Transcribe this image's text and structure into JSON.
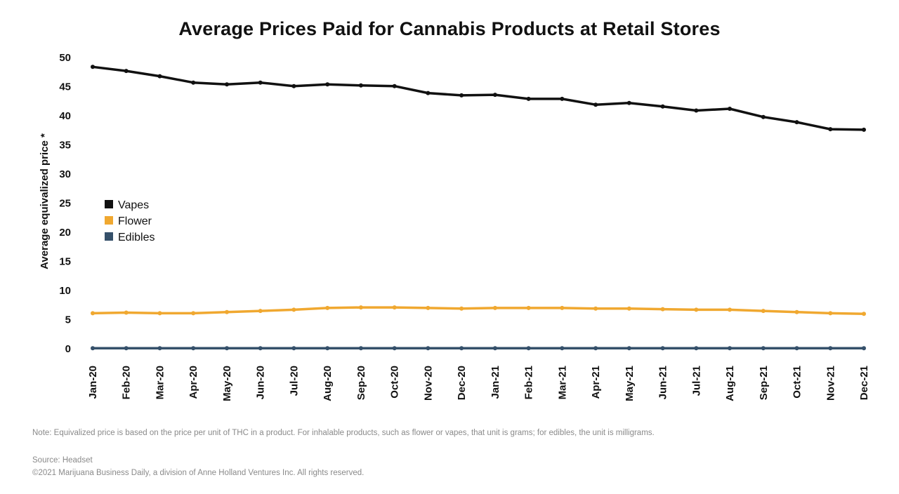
{
  "chart_data": {
    "type": "line",
    "title": "Average Prices Paid for Cannabis Products at Retail Stores",
    "xlabel": "",
    "ylabel": "Average equivalized price *",
    "ylim": [
      0,
      50
    ],
    "yticks": [
      "0",
      "5",
      "10",
      "15",
      "20",
      "25",
      "30",
      "35",
      "40",
      "45",
      "50"
    ],
    "grid": false,
    "legend_position": "left",
    "categories": [
      "Jan-20",
      "Feb-20",
      "Mar-20",
      "Apr-20",
      "May-20",
      "Jun-20",
      "Jul-20",
      "Aug-20",
      "Sep-20",
      "Oct-20",
      "Nov-20",
      "Dec-20",
      "Jan-21",
      "Feb-21",
      "Mar-21",
      "Apr-21",
      "May-21",
      "Jun-21",
      "Jul-21",
      "Aug-21",
      "Sep-21",
      "Oct-21",
      "Nov-21",
      "Dec-21"
    ],
    "series": [
      {
        "name": "Vapes",
        "color": "#111111",
        "values": [
          48.4,
          47.7,
          46.8,
          45.7,
          45.4,
          45.7,
          45.1,
          45.4,
          45.2,
          45.1,
          43.9,
          43.5,
          43.6,
          42.9,
          42.9,
          41.9,
          42.2,
          41.6,
          40.9,
          41.2,
          39.8,
          38.9,
          37.7,
          37.6
        ]
      },
      {
        "name": "Flower",
        "color": "#f0a830",
        "values": [
          6.1,
          6.2,
          6.1,
          6.1,
          6.3,
          6.5,
          6.7,
          7.0,
          7.1,
          7.1,
          7.0,
          6.9,
          7.0,
          7.0,
          7.0,
          6.9,
          6.9,
          6.8,
          6.7,
          6.7,
          6.5,
          6.3,
          6.1,
          6.0
        ]
      },
      {
        "name": "Edibles",
        "color": "#35506a",
        "values": [
          0.1,
          0.1,
          0.1,
          0.1,
          0.1,
          0.1,
          0.1,
          0.1,
          0.1,
          0.1,
          0.1,
          0.1,
          0.1,
          0.1,
          0.1,
          0.1,
          0.1,
          0.1,
          0.1,
          0.1,
          0.1,
          0.1,
          0.1,
          0.1
        ]
      }
    ]
  },
  "footer": {
    "note": "Note: Equivalized price is based on the price per unit of THC in a product. For inhalable products, such as flower or vapes, that unit is grams; for edibles, the unit is milligrams.",
    "source": "Source: Headset",
    "copyright": "©2021 Marijuana Business Daily, a division of Anne Holland Ventures Inc. All rights reserved."
  }
}
